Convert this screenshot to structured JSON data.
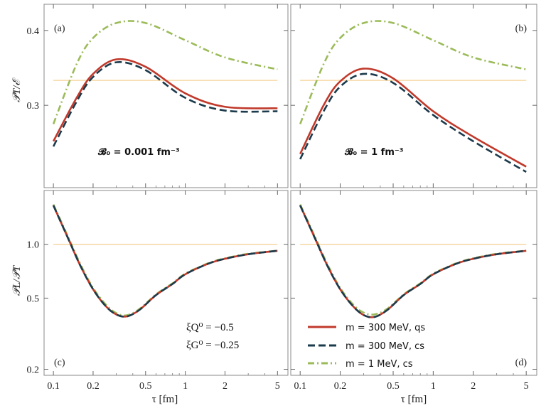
{
  "chart_data": {
    "type": "line",
    "x_axis_label": "τ [fm]",
    "x_ticks": [
      0.1,
      0.2,
      0.5,
      1,
      2,
      5
    ],
    "x_tick_labels": [
      "0.1",
      "0.2",
      "0.5",
      "1",
      "2",
      "5"
    ],
    "xlim": [
      0.085,
      6.0
    ],
    "legend": [
      {
        "name": "m = 300 MeV, qs",
        "color": "#c0392b",
        "style": "solid"
      },
      {
        "name": "m = 300 MeV, cs",
        "color": "#1b3a4b",
        "style": "dashed"
      },
      {
        "name": "m = 1 MeV, cs",
        "color": "#9bbb59",
        "style": "dashdot"
      }
    ],
    "reference_color": "#f5d49a",
    "panels": [
      {
        "id": "a",
        "label": "(a)",
        "ylabel": "𝒫T/ℰ",
        "yscale": "linear",
        "ylim": [
          0.19,
          0.435
        ],
        "y_ticks": [
          0.3,
          0.4
        ],
        "y_tick_labels": [
          "0.3",
          "0.4"
        ],
        "annotation": "𝓑₀ = 0.001 fm⁻³",
        "reference_y": 0.3333,
        "series": [
          {
            "name": "m = 300 MeV, qs",
            "x": [
              0.1,
              0.15,
              0.2,
              0.3,
              0.5,
              1,
              2,
              5
            ],
            "y": [
              0.252,
              0.31,
              0.342,
              0.3614,
              0.3515,
              0.316,
              0.298,
              0.296
            ]
          },
          {
            "name": "m = 300 MeV, cs",
            "x": [
              0.1,
              0.15,
              0.2,
              0.3,
              0.5,
              1,
              2,
              5
            ],
            "y": [
              0.245,
              0.305,
              0.338,
              0.3575,
              0.347,
              0.31,
              0.293,
              0.292
            ]
          },
          {
            "name": "m = 1 MeV, cs",
            "x": [
              0.1,
              0.15,
              0.2,
              0.3,
              0.5,
              1,
              2,
              5
            ],
            "y": [
              0.275,
              0.355,
              0.39,
              0.41,
              0.41,
              0.387,
              0.364,
              0.348
            ]
          }
        ]
      },
      {
        "id": "b",
        "label": "(b)",
        "ylabel": "",
        "yscale": "linear",
        "ylim": [
          0.19,
          0.435
        ],
        "y_ticks": [
          0.3,
          0.4
        ],
        "y_tick_labels": [
          "",
          ""
        ],
        "annotation": "𝓑₀ = 1 fm⁻³",
        "reference_y": 0.3333,
        "series": [
          {
            "name": "m = 300 MeV, qs",
            "x": [
              0.1,
              0.15,
              0.2,
              0.3,
              0.5,
              1,
              2,
              5
            ],
            "y": [
              0.235,
              0.3,
              0.332,
              0.349,
              0.336,
              0.292,
              0.258,
              0.218
            ]
          },
          {
            "name": "m = 300 MeV, cs",
            "x": [
              0.1,
              0.15,
              0.2,
              0.3,
              0.5,
              1,
              2,
              5
            ],
            "y": [
              0.228,
              0.292,
              0.325,
              0.342,
              0.33,
              0.287,
              0.252,
              0.211
            ]
          },
          {
            "name": "m = 1 MeV, cs",
            "x": [
              0.1,
              0.15,
              0.2,
              0.3,
              0.5,
              1,
              2,
              5
            ],
            "y": [
              0.275,
              0.355,
              0.39,
              0.41,
              0.41,
              0.387,
              0.364,
              0.348
            ]
          }
        ]
      },
      {
        "id": "c",
        "label": "(c)",
        "ylabel": "𝒫L/𝒫T",
        "yscale": "log",
        "ylim": [
          0.185,
          2.0
        ],
        "y_ticks": [
          0.2,
          0.5,
          1.0
        ],
        "y_tick_labels": [
          "0.2",
          "0.5",
          "1.0"
        ],
        "annotation_lines": [
          "ξQ⁰ = −0.5",
          "ξG⁰ = −0.25"
        ],
        "reference_y": 1.0,
        "series": [
          {
            "name": "m = 300 MeV, qs",
            "x": [
              0.1,
              0.13,
              0.16,
              0.2,
              0.25,
              0.3,
              0.36,
              0.45,
              0.6,
              0.8,
              1,
              1.5,
              2,
              3,
              5
            ],
            "y": [
              1.65,
              1.07,
              0.76,
              0.56,
              0.45,
              0.405,
              0.395,
              0.43,
              0.52,
              0.6,
              0.68,
              0.78,
              0.83,
              0.88,
              0.92
            ]
          },
          {
            "name": "m = 300 MeV, cs",
            "x": [
              0.1,
              0.13,
              0.16,
              0.2,
              0.25,
              0.3,
              0.36,
              0.45,
              0.6,
              0.8,
              1,
              1.5,
              2,
              3,
              5
            ],
            "y": [
              1.65,
              1.07,
              0.76,
              0.56,
              0.45,
              0.405,
              0.395,
              0.43,
              0.52,
              0.6,
              0.68,
              0.78,
              0.83,
              0.88,
              0.92
            ]
          },
          {
            "name": "m = 1 MeV, cs",
            "x": [
              0.1,
              0.13,
              0.16,
              0.2,
              0.25,
              0.3,
              0.36,
              0.45,
              0.6,
              0.8,
              1,
              1.5,
              2,
              3,
              5
            ],
            "y": [
              1.67,
              1.09,
              0.775,
              0.57,
              0.46,
              0.412,
              0.401,
              0.435,
              0.525,
              0.605,
              0.685,
              0.785,
              0.835,
              0.885,
              0.922
            ]
          }
        ]
      },
      {
        "id": "d",
        "label": "(d)",
        "ylabel": "",
        "yscale": "log",
        "ylim": [
          0.185,
          2.0
        ],
        "y_ticks": [
          0.2,
          0.5,
          1.0
        ],
        "y_tick_labels": [
          "",
          "",
          ""
        ],
        "reference_y": 1.0,
        "series": [
          {
            "name": "m = 300 MeV, qs",
            "x": [
              0.1,
              0.13,
              0.16,
              0.2,
              0.25,
              0.3,
              0.36,
              0.45,
              0.6,
              0.8,
              1,
              1.5,
              2,
              3,
              5
            ],
            "y": [
              1.65,
              1.07,
              0.76,
              0.56,
              0.45,
              0.402,
              0.392,
              0.428,
              0.52,
              0.6,
              0.68,
              0.78,
              0.83,
              0.88,
              0.92
            ]
          },
          {
            "name": "m = 300 MeV, cs",
            "x": [
              0.1,
              0.13,
              0.16,
              0.2,
              0.25,
              0.3,
              0.36,
              0.45,
              0.6,
              0.8,
              1,
              1.5,
              2,
              3,
              5
            ],
            "y": [
              1.65,
              1.07,
              0.76,
              0.56,
              0.45,
              0.402,
              0.392,
              0.428,
              0.52,
              0.6,
              0.68,
              0.78,
              0.83,
              0.88,
              0.92
            ]
          },
          {
            "name": "m = 1 MeV, cs",
            "x": [
              0.1,
              0.13,
              0.16,
              0.2,
              0.25,
              0.3,
              0.36,
              0.45,
              0.6,
              0.8,
              1,
              1.5,
              2,
              3,
              5
            ],
            "y": [
              1.67,
              1.09,
              0.775,
              0.57,
              0.46,
              0.415,
              0.405,
              0.435,
              0.525,
              0.605,
              0.685,
              0.785,
              0.835,
              0.885,
              0.922
            ]
          }
        ]
      }
    ]
  }
}
